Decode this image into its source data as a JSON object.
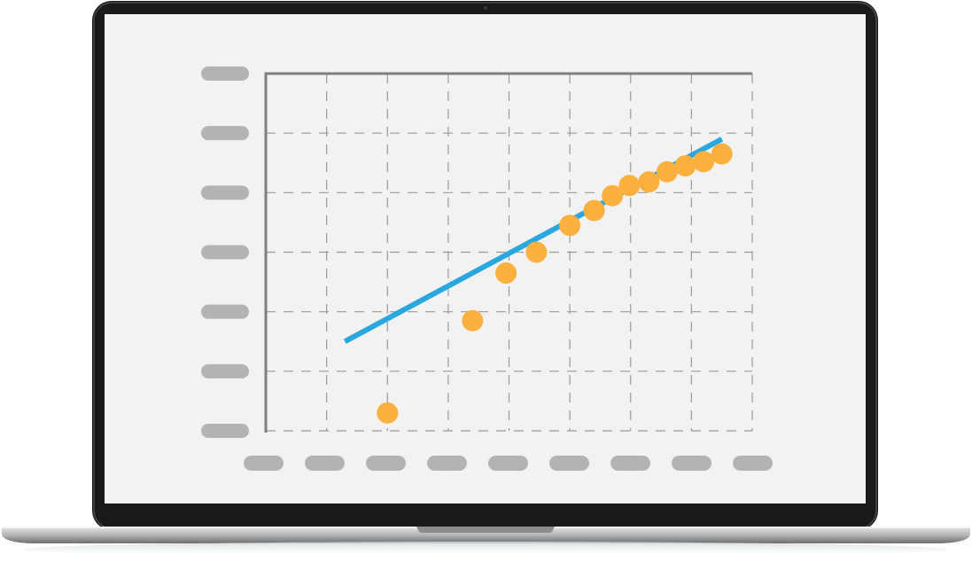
{
  "colors": {
    "bezel": "#1a1a1a",
    "screen": "#f2f2f2",
    "axis": "#7f7f7f",
    "grid": "#9a9a9a",
    "label_placeholder": "#b3b3b3",
    "trend_line": "#29a8e0",
    "points": "#fbb040"
  },
  "chart_data": {
    "type": "scatter",
    "grid": true,
    "xlim": [
      0,
      8
    ],
    "ylim": [
      0,
      6
    ],
    "x_tick_count": 9,
    "y_tick_count": 7,
    "tick_labels_visible": false,
    "points": [
      {
        "x": 2.0,
        "y": 0.3
      },
      {
        "x": 3.4,
        "y": 1.85
      },
      {
        "x": 3.95,
        "y": 2.65
      },
      {
        "x": 4.45,
        "y": 3.0
      },
      {
        "x": 5.0,
        "y": 3.45
      },
      {
        "x": 5.4,
        "y": 3.7
      },
      {
        "x": 5.7,
        "y": 3.95
      },
      {
        "x": 5.98,
        "y": 4.12
      },
      {
        "x": 6.3,
        "y": 4.18
      },
      {
        "x": 6.6,
        "y": 4.35
      },
      {
        "x": 6.9,
        "y": 4.45
      },
      {
        "x": 7.2,
        "y": 4.52
      },
      {
        "x": 7.5,
        "y": 4.65
      }
    ],
    "trend_line": {
      "x": [
        1.3,
        7.5
      ],
      "y": [
        1.5,
        4.9
      ]
    }
  }
}
